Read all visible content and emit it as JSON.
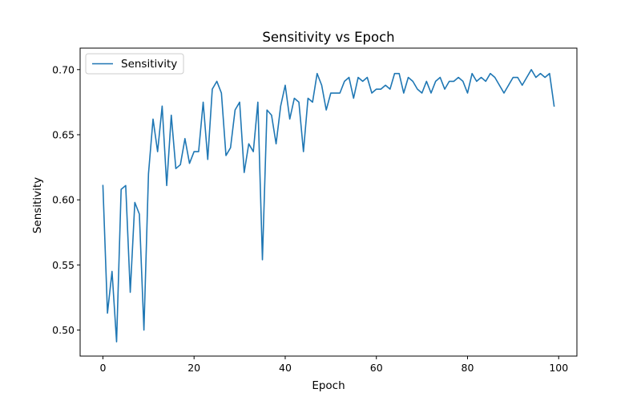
{
  "chart_data": {
    "type": "line",
    "title": "Sensitivity vs Epoch",
    "xlabel": "Epoch",
    "ylabel": "Sensitivity",
    "xlim": [
      -5,
      104
    ],
    "ylim": [
      0.48,
      0.7165
    ],
    "xticks": [
      0,
      20,
      40,
      60,
      80,
      100
    ],
    "yticks": [
      0.5,
      0.55,
      0.6,
      0.65,
      0.7
    ],
    "ytick_labels": [
      "0.50",
      "0.55",
      "0.60",
      "0.65",
      "0.70"
    ],
    "grid": false,
    "legend": {
      "position": "top-left",
      "entries": [
        "Sensitivity"
      ]
    },
    "series": [
      {
        "name": "Sensitivity",
        "color": "#1f77b4",
        "x": [
          0,
          1,
          2,
          3,
          4,
          5,
          6,
          7,
          8,
          9,
          10,
          11,
          12,
          13,
          14,
          15,
          16,
          17,
          18,
          19,
          20,
          21,
          22,
          23,
          24,
          25,
          26,
          27,
          28,
          29,
          30,
          31,
          32,
          33,
          34,
          35,
          36,
          37,
          38,
          39,
          40,
          41,
          42,
          43,
          44,
          45,
          46,
          47,
          48,
          49,
          50,
          51,
          52,
          53,
          54,
          55,
          56,
          57,
          58,
          59,
          60,
          61,
          62,
          63,
          64,
          65,
          66,
          67,
          68,
          69,
          70,
          71,
          72,
          73,
          74,
          75,
          76,
          77,
          78,
          79,
          80,
          81,
          82,
          83,
          84,
          85,
          86,
          87,
          88,
          89,
          90,
          91,
          92,
          93,
          94,
          95,
          96,
          97,
          98,
          99
        ],
        "y": [
          0.611,
          0.513,
          0.545,
          0.491,
          0.608,
          0.611,
          0.529,
          0.598,
          0.589,
          0.5,
          0.62,
          0.662,
          0.637,
          0.672,
          0.611,
          0.665,
          0.624,
          0.627,
          0.647,
          0.628,
          0.637,
          0.637,
          0.675,
          0.631,
          0.685,
          0.691,
          0.682,
          0.634,
          0.64,
          0.669,
          0.675,
          0.621,
          0.643,
          0.637,
          0.675,
          0.554,
          0.669,
          0.665,
          0.643,
          0.672,
          0.688,
          0.662,
          0.678,
          0.675,
          0.637,
          0.678,
          0.675,
          0.697,
          0.688,
          0.669,
          0.682,
          0.682,
          0.682,
          0.691,
          0.694,
          0.678,
          0.694,
          0.691,
          0.694,
          0.682,
          0.685,
          0.685,
          0.688,
          0.685,
          0.697,
          0.697,
          0.682,
          0.694,
          0.691,
          0.685,
          0.682,
          0.691,
          0.682,
          0.691,
          0.694,
          0.685,
          0.691,
          0.691,
          0.694,
          0.691,
          0.682,
          0.697,
          0.691,
          0.694,
          0.691,
          0.697,
          0.694,
          0.688,
          0.682,
          0.688,
          0.694,
          0.694,
          0.688,
          0.694,
          0.7,
          0.694,
          0.697,
          0.694,
          0.697,
          0.672
        ]
      }
    ]
  }
}
